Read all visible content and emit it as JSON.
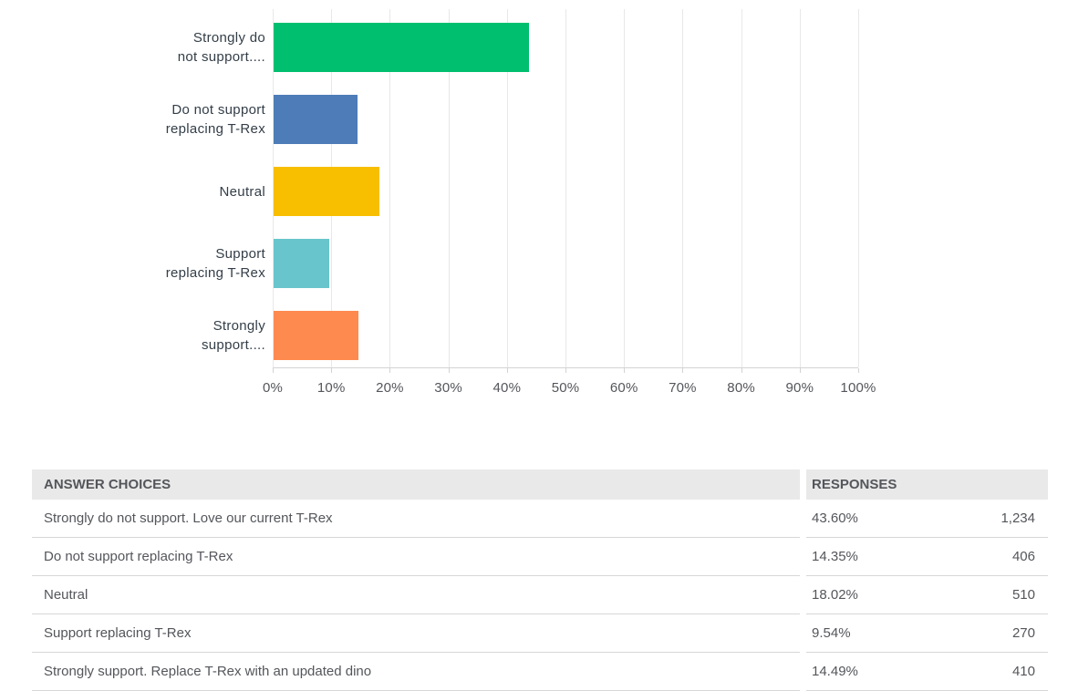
{
  "chart_data": {
    "type": "bar",
    "orientation": "horizontal",
    "title": "",
    "xlabel": "",
    "ylabel": "",
    "categories": [
      "Strongly do not support. Love our current T-Rex",
      "Do not support replacing T-Rex",
      "Neutral",
      "Support replacing T-Rex",
      "Strongly support. Replace T-Rex with an updated dino"
    ],
    "category_label_lines": [
      [
        "Strongly do",
        "not support...."
      ],
      [
        "Do not support",
        "replacing T-Rex"
      ],
      [
        "Neutral"
      ],
      [
        "Support",
        "replacing T-Rex"
      ],
      [
        "Strongly",
        "support...."
      ]
    ],
    "values": [
      43.6,
      14.35,
      18.02,
      9.54,
      14.49
    ],
    "bar_colors": [
      "#00BF6F",
      "#4D7CB8",
      "#F8BE00",
      "#68C5CB",
      "#FF8A50"
    ],
    "x_ticks": [
      "0%",
      "10%",
      "20%",
      "30%",
      "40%",
      "50%",
      "60%",
      "70%",
      "80%",
      "90%",
      "100%"
    ],
    "xlim": [
      0,
      100
    ],
    "grid": "vertical gridlines on",
    "legend": "none"
  },
  "table": {
    "header": {
      "answer_choices": "ANSWER CHOICES",
      "responses": "RESPONSES"
    },
    "rows": [
      {
        "answer": "Strongly do not support. Love our current T-Rex",
        "percent": "43.60%",
        "count": "1,234"
      },
      {
        "answer": "Do not support replacing T-Rex",
        "percent": "14.35%",
        "count": "406"
      },
      {
        "answer": "Neutral",
        "percent": "18.02%",
        "count": "510"
      },
      {
        "answer": "Support replacing T-Rex",
        "percent": "9.54%",
        "count": "270"
      },
      {
        "answer": "Strongly support. Replace T-Rex with an updated dino",
        "percent": "14.49%",
        "count": "410"
      }
    ]
  },
  "colors": {
    "bar_green": "#00BF6F",
    "bar_blue": "#4D7CB8",
    "bar_yellow": "#F8BE00",
    "bar_teal": "#68C5CB",
    "bar_orange": "#FF8A50",
    "gridline": "#E8E8E8",
    "axis_line": "#D3D3D3",
    "header_bg": "#E9E9E9",
    "row_border": "#D7D7D7",
    "chart_label_text": "#333E48",
    "table_text": "#54565B"
  }
}
